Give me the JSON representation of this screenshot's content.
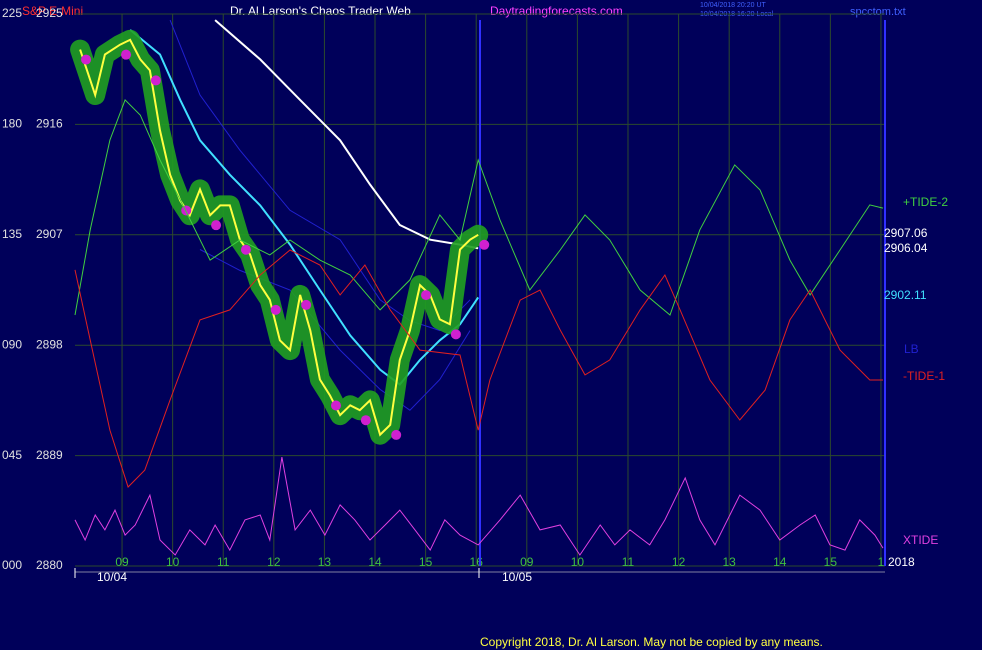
{
  "chart_data": {
    "type": "line",
    "title": "Dr. Al Larson's Chaos Trader Web",
    "subtitle": "S&P E-Mini",
    "site": "Daytradingforecasts.com",
    "timestamps": [
      "10/04/2018 20:20 UT",
      "10/04/2018 16:20 Local"
    ],
    "file": "spcctom.txt",
    "copyright": "Copyright 2018, Dr. Al Larson. May not be copied by any means.",
    "dates": [
      "10/04",
      "10/05"
    ],
    "year": "2018",
    "xlim": [
      -0.93,
      15.08
    ],
    "xticks": [
      {
        "value": 0,
        "label": "09"
      },
      {
        "value": 1,
        "label": "10"
      },
      {
        "value": 2,
        "label": "11"
      },
      {
        "value": 3,
        "label": "12"
      },
      {
        "value": 4,
        "label": "13"
      },
      {
        "value": 5,
        "label": "14"
      },
      {
        "value": 6,
        "label": "15"
      },
      {
        "value": 7,
        "label": "16"
      },
      {
        "value": 8,
        "label": "09"
      },
      {
        "value": 9,
        "label": "10"
      },
      {
        "value": 10,
        "label": "11"
      },
      {
        "value": 11,
        "label": "12"
      },
      {
        "value": 12,
        "label": "13"
      },
      {
        "value": 13,
        "label": "14"
      },
      {
        "value": 14,
        "label": "15"
      },
      {
        "value": 15,
        "label": "1"
      }
    ],
    "ylim": [
      2880,
      2925
    ],
    "yticks": [
      2880,
      2889,
      2898,
      2907,
      2916,
      2925
    ],
    "y2lim": [
      0,
      225
    ],
    "y2ticks": [
      {
        "value": 0,
        "label": "000"
      },
      {
        "value": 45,
        "label": "045"
      },
      {
        "value": 90,
        "label": "090"
      },
      135,
      180,
      225
    ],
    "grid": true,
    "end_labels": [
      {
        "text": "2907.06",
        "value": 2907.06,
        "color": "#ffffff"
      },
      {
        "text": "2906.04",
        "value": 2906.04,
        "color": "#ffffff"
      },
      {
        "text": "2902.11",
        "value": 2902.11,
        "color": "#40e0ff"
      }
    ],
    "series": [
      {
        "color": "#2020d0",
        "x": [
          0.95,
          1.54,
          2.33,
          3.32,
          4.31,
          5.1,
          5.69,
          6.28,
          6.88
        ],
        "values": [
          2924.5,
          2918.4,
          2913.9,
          2909.0,
          2906.6,
          2901.7,
          2900.0,
          2899.2,
          2901.7
        ]
      },
      {
        "name": "LB",
        "color": "#2020d0",
        "x": [
          1.54,
          2.33,
          3.32,
          4.31,
          5.1,
          5.69,
          6.28,
          6.88
        ],
        "values": [
          2905.8,
          2904.1,
          2902.5,
          2897.6,
          2894.4,
          2892.7,
          2895.2,
          2899.2
        ]
      },
      {
        "color": "#ffffff",
        "x": [
          1.84,
          2.73,
          3.52,
          4.31,
          4.9,
          5.49,
          6.09,
          6.68,
          7.04
        ],
        "values": [
          2924.5,
          2921.3,
          2918.0,
          2914.7,
          2911.1,
          2907.8,
          2906.6,
          2906.2,
          2905.9
        ]
      },
      {
        "color": "#40e0ff",
        "x": [
          0.16,
          0.75,
          1.15,
          1.54,
          2.13,
          2.73,
          3.32,
          3.91,
          4.51,
          5.1,
          5.49,
          5.89,
          6.28,
          6.68,
          7.04
        ],
        "values": [
          2923.7,
          2921.7,
          2918.0,
          2914.7,
          2911.9,
          2909.4,
          2906.2,
          2902.5,
          2898.8,
          2896.0,
          2894.8,
          2896.8,
          2898.4,
          2899.7,
          2901.9
        ]
      },
      {
        "color": "#ffff40",
        "x": [
          -0.83,
          -0.53,
          -0.34,
          -0.04,
          0.16,
          0.36,
          0.55,
          0.75,
          0.95,
          1.15,
          1.34,
          1.54,
          1.74,
          1.94,
          2.13,
          2.33,
          2.53,
          2.73,
          2.92,
          3.12,
          3.32,
          3.52,
          3.72,
          3.91,
          4.11,
          4.31,
          4.51,
          4.7,
          4.9,
          5.1,
          5.3,
          5.49,
          5.69,
          5.89,
          6.09,
          6.28,
          6.48,
          6.68,
          6.88,
          7.04
        ],
        "values": [
          2922.1,
          2918.4,
          2921.7,
          2922.5,
          2922.9,
          2921.3,
          2920.4,
          2915.5,
          2911.9,
          2909.8,
          2908.6,
          2910.7,
          2908.6,
          2909.4,
          2909.4,
          2906.6,
          2905.4,
          2902.9,
          2901.7,
          2898.4,
          2897.6,
          2902.1,
          2899.2,
          2895.2,
          2893.9,
          2892.3,
          2893.1,
          2892.7,
          2893.5,
          2890.7,
          2891.5,
          2896.8,
          2899.2,
          2902.9,
          2902.1,
          2900.1,
          2899.7,
          2905.8,
          2906.6,
          2907.0
        ]
      },
      {
        "name": "+TIDE-2",
        "color": "#40d040",
        "axis": "y2",
        "x": [
          -0.93,
          -0.63,
          -0.24,
          0.06,
          0.36,
          0.75,
          1.25,
          1.74,
          2.33,
          2.92,
          3.32,
          3.91,
          4.51,
          5.1,
          5.69,
          6.28,
          6.68,
          7.04,
          7.47,
          8.06,
          8.66,
          9.15,
          9.64,
          10.24,
          10.83,
          11.42,
          12.11,
          12.61,
          13.2,
          13.6,
          14.19,
          14.78,
          15.04
        ],
        "values": [
          102.3,
          137.0,
          173.6,
          190.0,
          183.8,
          165.5,
          145.1,
          124.7,
          132.9,
          126.8,
          132.9,
          124.7,
          118.6,
          104.4,
          116.6,
          143.1,
          132.9,
          165.5,
          141.0,
          112.5,
          128.8,
          143.1,
          132.9,
          112.5,
          102.3,
          137.0,
          163.5,
          153.3,
          124.7,
          110.5,
          128.8,
          147.2,
          145.9
        ]
      },
      {
        "name": "-TIDE-1",
        "color": "#e02020",
        "axis": "y2",
        "x": [
          -0.93,
          -0.63,
          -0.24,
          0.12,
          0.45,
          0.95,
          1.54,
          2.13,
          2.73,
          3.32,
          3.91,
          4.31,
          4.8,
          5.3,
          5.89,
          6.68,
          7.04,
          7.27,
          7.87,
          8.26,
          8.66,
          9.15,
          9.64,
          10.24,
          10.73,
          11.03,
          11.62,
          12.21,
          12.71,
          13.2,
          13.6,
          14.19,
          14.78,
          15.04
        ],
        "values": [
          120.7,
          92.1,
          55.4,
          32.2,
          39.1,
          67.7,
          100.3,
          104.4,
          118.6,
          128.8,
          122.7,
          110.5,
          122.7,
          104.4,
          88.0,
          86.0,
          55.4,
          75.8,
          108.4,
          112.5,
          96.2,
          77.9,
          84.0,
          104.4,
          118.6,
          104.4,
          75.8,
          59.5,
          71.7,
          100.3,
          112.5,
          88.0,
          75.8,
          75.8
        ]
      },
      {
        "name": "XTIDE",
        "color": "#e040e0",
        "axis": "y2",
        "x": [
          -0.93,
          -0.73,
          -0.53,
          -0.34,
          -0.14,
          0.06,
          0.26,
          0.55,
          0.75,
          1.05,
          1.34,
          1.64,
          1.84,
          2.13,
          2.43,
          2.73,
          2.92,
          3.16,
          3.42,
          3.72,
          4.01,
          4.31,
          4.6,
          4.9,
          5.2,
          5.49,
          5.79,
          6.09,
          6.38,
          6.68,
          7.04,
          7.47,
          7.87,
          8.26,
          8.66,
          9.05,
          9.45,
          9.74,
          10.04,
          10.43,
          10.73,
          11.13,
          11.42,
          11.72,
          12.21,
          12.61,
          13.0,
          13.4,
          13.7,
          13.99,
          14.29,
          14.58,
          14.88,
          15.04
        ],
        "values": [
          18.8,
          10.6,
          20.8,
          14.7,
          22.8,
          12.6,
          16.7,
          28.9,
          10.6,
          4.5,
          14.7,
          8.6,
          16.7,
          6.5,
          18.8,
          20.8,
          10.6,
          44.4,
          14.7,
          22.8,
          12.6,
          24.9,
          18.8,
          10.6,
          16.7,
          22.8,
          14.7,
          6.5,
          18.8,
          12.6,
          8.6,
          18.8,
          28.9,
          14.7,
          16.7,
          4.5,
          16.7,
          8.6,
          14.7,
          8.6,
          18.8,
          35.9,
          18.8,
          8.6,
          28.9,
          22.8,
          10.6,
          16.7,
          20.8,
          8.6,
          6.5,
          18.8,
          12.6,
          7.3
        ]
      }
    ]
  }
}
